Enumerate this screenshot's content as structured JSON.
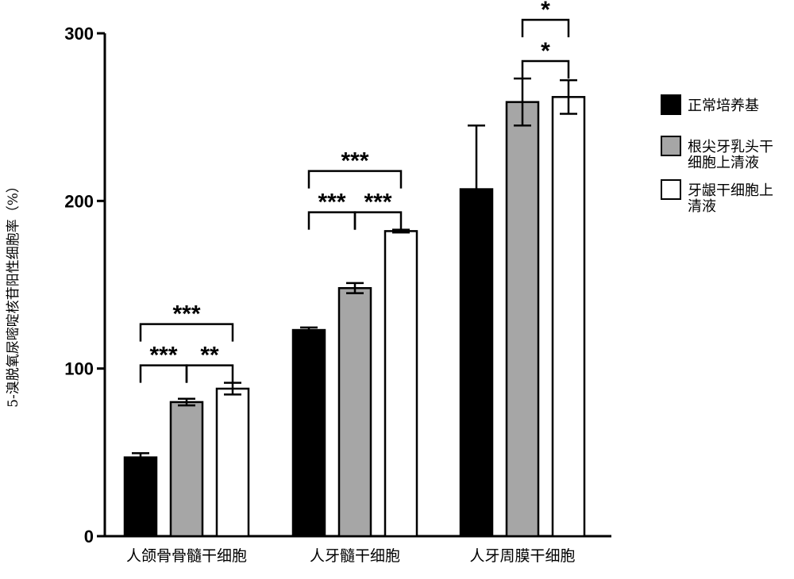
{
  "chart_data": {
    "type": "bar",
    "title": "",
    "xlabel": "",
    "ylabel": "5-溴脱氧尿嘧啶核苷阳性细胞率（%）",
    "ylim": [
      0,
      300
    ],
    "yticks": [
      0,
      100,
      200,
      300
    ],
    "categories": [
      "人颌骨骨髓干细胞",
      "人牙髓干细胞",
      "人牙周膜干细胞"
    ],
    "series": [
      {
        "name": "正常培养基",
        "color": "#000000",
        "values": [
          47,
          123,
          207
        ],
        "errors": [
          2.5,
          1.5,
          38
        ]
      },
      {
        "name": "根尖牙乳头干细胞上清液",
        "color": "#a6a6a6",
        "values": [
          80,
          148,
          259
        ],
        "errors": [
          2,
          3,
          14
        ]
      },
      {
        "name": "牙龈干细胞上清液",
        "color": "#ffffff",
        "values": [
          88,
          182,
          262
        ],
        "errors": [
          3.5,
          0.8,
          10
        ]
      }
    ],
    "significance": [
      {
        "group": 0,
        "from": 0,
        "to": 1,
        "label": "***",
        "level": 1
      },
      {
        "group": 0,
        "from": 1,
        "to": 2,
        "label": "**",
        "level": 1
      },
      {
        "group": 0,
        "from": 0,
        "to": 2,
        "label": "***",
        "level": 2
      },
      {
        "group": 1,
        "from": 0,
        "to": 1,
        "label": "***",
        "level": 1
      },
      {
        "group": 1,
        "from": 1,
        "to": 2,
        "label": "***",
        "level": 1
      },
      {
        "group": 1,
        "from": 0,
        "to": 2,
        "label": "***",
        "level": 2
      },
      {
        "group": 2,
        "from": 1,
        "to": 2,
        "label": "*",
        "level": 1
      },
      {
        "group": 2,
        "from": 1,
        "to": 2,
        "label": "*",
        "level": 2
      }
    ],
    "legend": {
      "position": "right",
      "entries": [
        {
          "lines": [
            "正常培养基"
          ]
        },
        {
          "lines": [
            "根尖牙乳头干",
            "细胞上清液"
          ]
        },
        {
          "lines": [
            "牙龈干细胞上",
            "清液"
          ]
        }
      ]
    }
  }
}
